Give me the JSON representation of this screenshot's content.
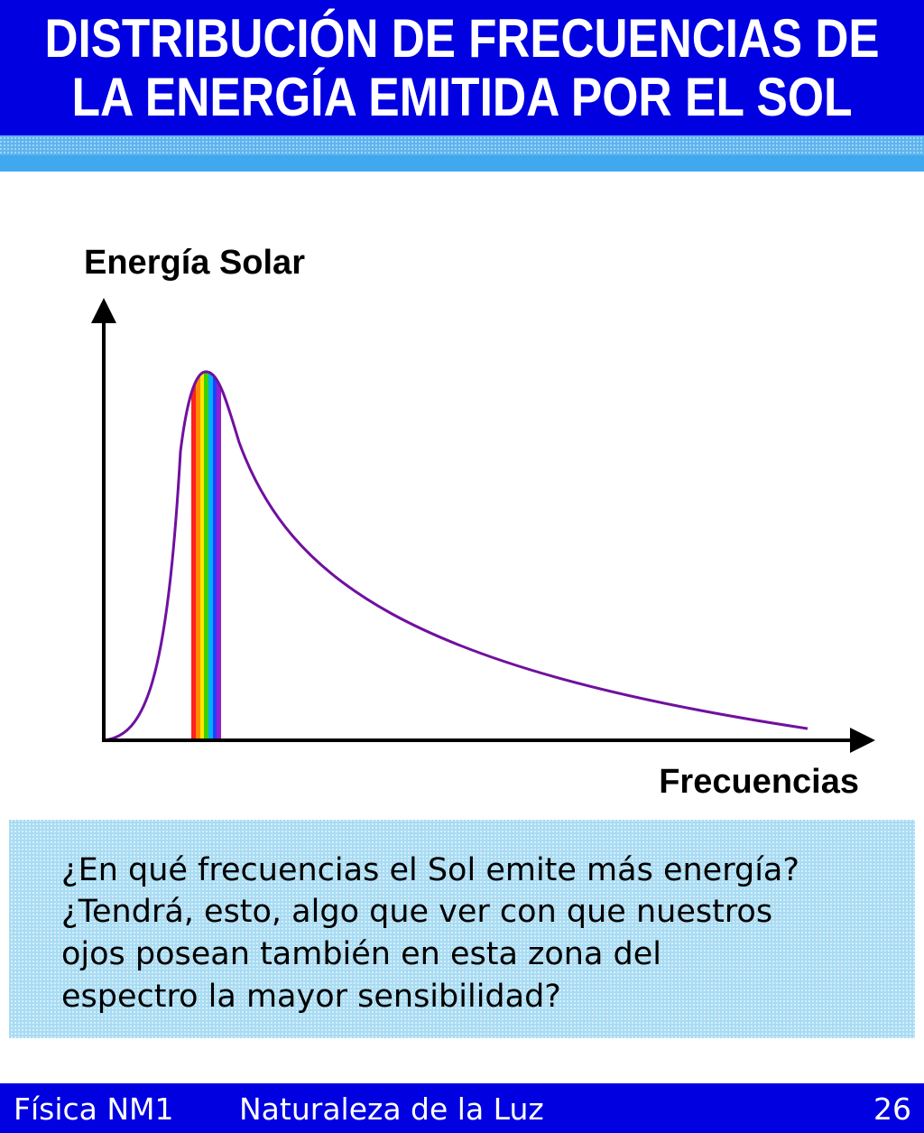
{
  "header": {
    "title_lines": [
      "DISTRIBUCIÓN DE FRECUENCIAS DE",
      "LA ENERGÍA EMITIDA POR EL SOL"
    ]
  },
  "chart": {
    "y_label": "Energía Solar",
    "x_label": "Frecuencias"
  },
  "question": {
    "lines": [
      "¿En qué frecuencias el Sol emite más energía?",
      "¿Tendrá, esto, algo que ver con que nuestros",
      "ojos posean también en esta zona del",
      "espectro la mayor sensibilidad?"
    ]
  },
  "footer": {
    "course": "Física NM1",
    "topic": "Naturaleza de la Luz",
    "page": "26"
  }
}
